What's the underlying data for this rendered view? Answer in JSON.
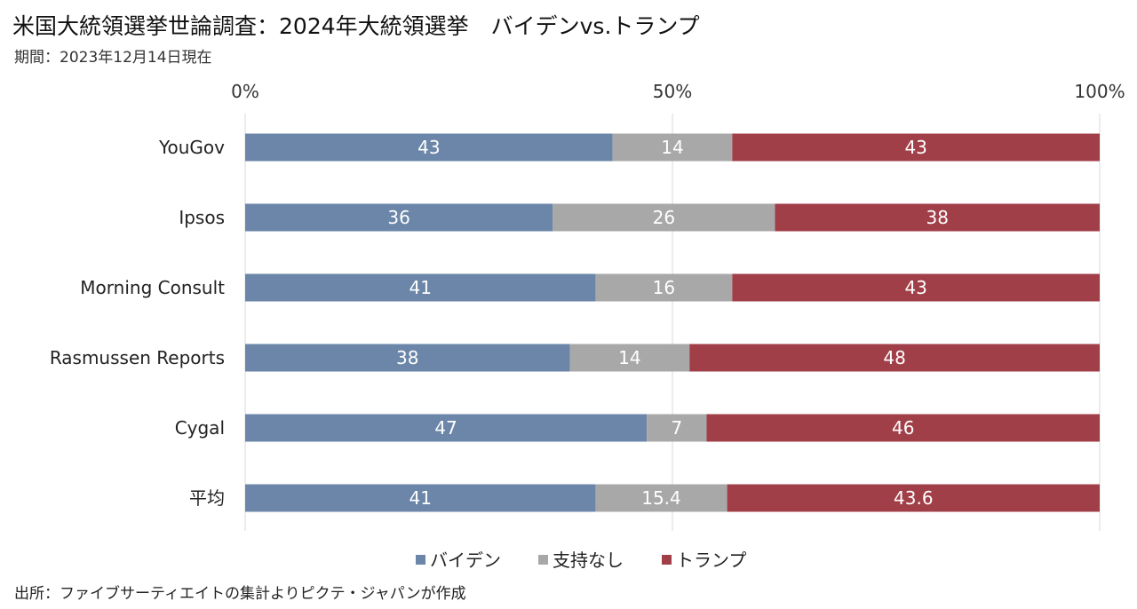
{
  "header": {
    "title": "米国大統領選挙世論調査：2024年大統領選挙　バイデンvs.トランプ",
    "subtitle": "期間：2023年12月14日現在"
  },
  "footer": {
    "source": "出所：ファイブサーティエイトの集計よりピクテ・ジャパンが作成"
  },
  "colors": {
    "biden": "#6b86a8",
    "none": "#a8a8a8",
    "trump": "#a13f48"
  },
  "chart_data": {
    "type": "bar",
    "orientation": "horizontal",
    "stacked": true,
    "stack_mode": "percent",
    "title": "米国大統領選挙世論調査：2024年大統領選挙　バイデンvs.トランプ",
    "subtitle": "期間：2023年12月14日現在",
    "categories": [
      "YouGov",
      "Ipsos",
      "Morning Consult",
      "Rasmussen Reports",
      "Cygal",
      "平均"
    ],
    "series": [
      {
        "name": "バイデン",
        "values": [
          43,
          36,
          41,
          38,
          47,
          41
        ],
        "labels": [
          "43",
          "36",
          "41",
          "38",
          "47",
          "41"
        ],
        "color": "#6b86a8"
      },
      {
        "name": "支持なし",
        "values": [
          14,
          26,
          16,
          14,
          7,
          15.4
        ],
        "labels": [
          "14",
          "26",
          "16",
          "14",
          "7",
          "15.4"
        ],
        "color": "#a8a8a8"
      },
      {
        "name": "トランプ",
        "values": [
          43,
          38,
          43,
          48,
          46,
          43.6
        ],
        "labels": [
          "43",
          "38",
          "43",
          "48",
          "46",
          "43.6"
        ],
        "color": "#a13f48"
      }
    ],
    "xlim": [
      0,
      100
    ],
    "x_ticks": [
      "0%",
      "50%",
      "100%"
    ],
    "x_tick_values": [
      0,
      50,
      100
    ],
    "axis_position": "top",
    "grid": true,
    "legend": "bottom",
    "source": "出所：ファイブサーティエイトの集計よりピクテ・ジャパンが作成"
  }
}
